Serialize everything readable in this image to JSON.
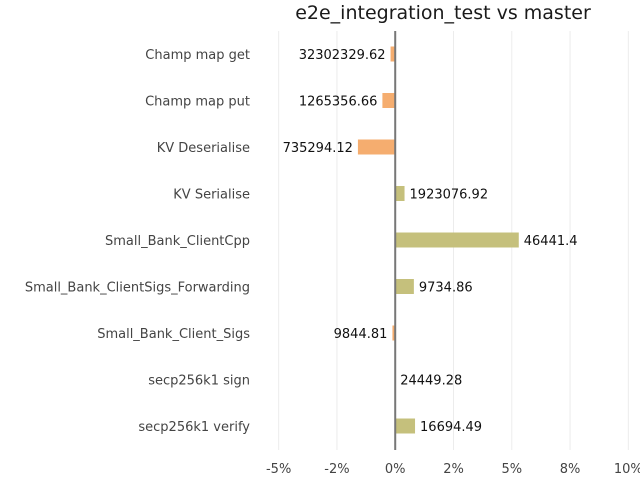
{
  "chart_data": {
    "type": "bar",
    "orientation": "horizontal",
    "title": "e2e_integration_test vs master",
    "xlabel": "",
    "ylabel": "",
    "xlim": [
      -5.5,
      10.5
    ],
    "xticks": [
      -5,
      -2.5,
      0,
      2.5,
      5,
      7.5,
      10
    ],
    "xtick_labels": [
      "-5%",
      "-2%",
      "0%",
      "2%",
      "5%",
      "8%",
      "10%"
    ],
    "grid": true,
    "legend": "none",
    "colors": {
      "negative": "#f5ad6f",
      "positive": "#c5c07c",
      "zero_line": "#777777"
    },
    "categories": [
      "Champ map get",
      "Champ map put",
      "KV Deserialise",
      "KV Serialise",
      "Small_Bank_ClientCpp",
      "Small_Bank_ClientSigs_Forwarding",
      "Small_Bank_Client_Sigs",
      "secp256k1 sign",
      "secp256k1 verify"
    ],
    "values": [
      -0.2,
      -0.55,
      -1.6,
      0.4,
      5.3,
      0.8,
      -0.12,
      0.0,
      0.85
    ],
    "data_labels": [
      "32302329.62",
      "1265356.66",
      "735294.12",
      "1923076.92",
      "46441.4",
      "9734.86",
      "9844.81",
      "24449.28",
      "16694.49"
    ]
  }
}
